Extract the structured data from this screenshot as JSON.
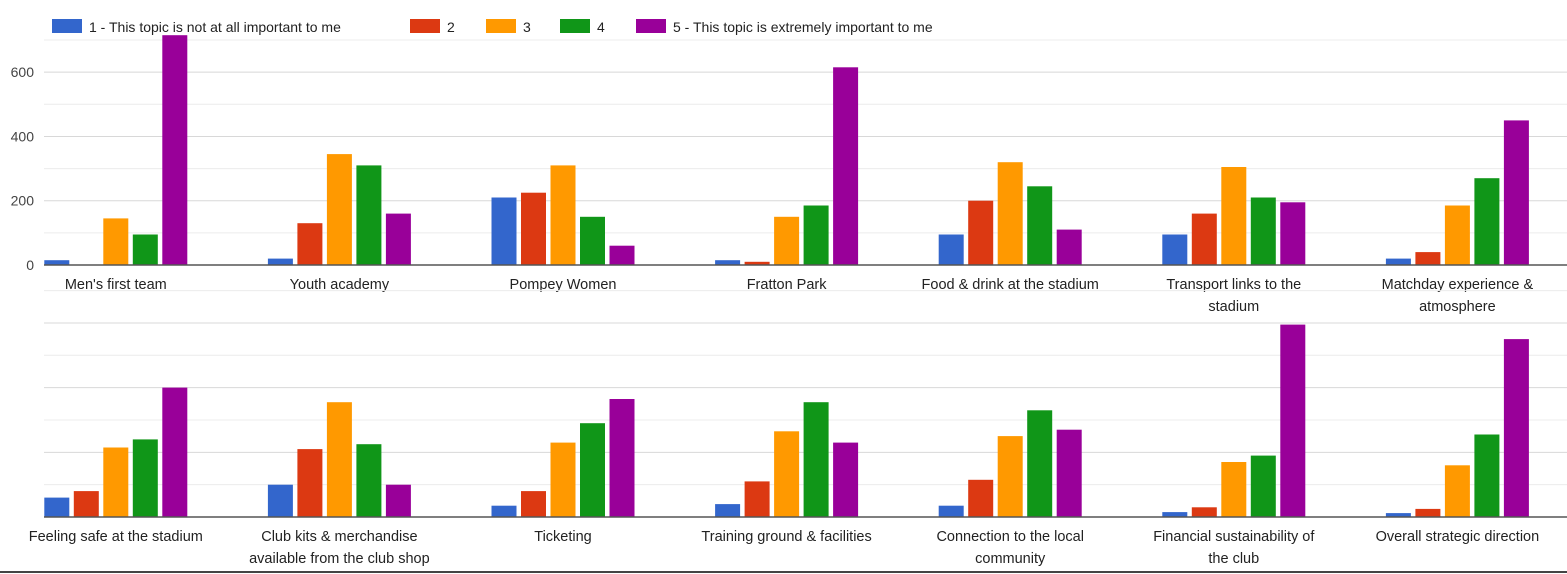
{
  "chart_data": {
    "type": "bar",
    "title": "",
    "xlabel": "",
    "ylabel": "",
    "ylim": [
      0,
      720
    ],
    "yticks": [
      0,
      200,
      400,
      600
    ],
    "grid": true,
    "legend_position": "top-left",
    "colors": [
      "#3366cc",
      "#dc3912",
      "#ff9900",
      "#109618",
      "#990099"
    ],
    "series": [
      {
        "name": "1 - This topic is not at all important to me"
      },
      {
        "name": "2"
      },
      {
        "name": "3"
      },
      {
        "name": "4"
      },
      {
        "name": "5 - This topic is extremely important to me"
      }
    ],
    "panels": [
      {
        "categories": [
          [
            "Men's first team"
          ],
          [
            "Youth academy"
          ],
          [
            "Pompey Women"
          ],
          [
            "Fratton Park"
          ],
          [
            "Food & drink at the stadium"
          ],
          [
            "Transport links to the",
            "stadium"
          ],
          [
            "Matchday experience &",
            "atmosphere"
          ]
        ],
        "values": [
          [
            15,
            0,
            145,
            95,
            715
          ],
          [
            20,
            130,
            345,
            310,
            160
          ],
          [
            210,
            225,
            310,
            150,
            60
          ],
          [
            15,
            10,
            150,
            185,
            615
          ],
          [
            95,
            200,
            320,
            245,
            110
          ],
          [
            95,
            160,
            305,
            210,
            195
          ],
          [
            20,
            40,
            185,
            270,
            450
          ]
        ]
      },
      {
        "categories": [
          [
            "Feeling safe at the stadium"
          ],
          [
            "Club kits & merchandise",
            "available from the club shop"
          ],
          [
            "Ticketing"
          ],
          [
            "Training ground & facilities"
          ],
          [
            "Connection to the local",
            "community"
          ],
          [
            "Financial sustainability of",
            "the club"
          ],
          [
            "Overall strategic direction"
          ]
        ],
        "values": [
          [
            60,
            80,
            215,
            240,
            400
          ],
          [
            100,
            210,
            355,
            225,
            100
          ],
          [
            35,
            80,
            230,
            290,
            365
          ],
          [
            40,
            110,
            265,
            355,
            230
          ],
          [
            35,
            115,
            250,
            330,
            270
          ],
          [
            15,
            30,
            170,
            190,
            595
          ],
          [
            12,
            25,
            160,
            255,
            550
          ]
        ]
      }
    ]
  }
}
